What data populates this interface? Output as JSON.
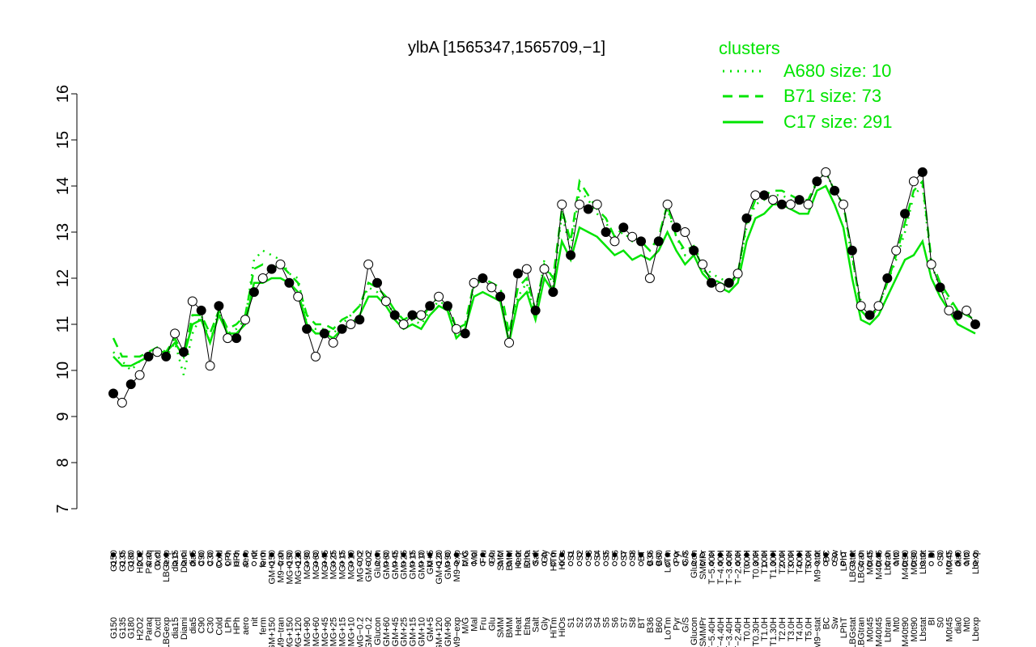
{
  "chart_data": {
    "type": "line",
    "title": "ylbA [1565347,1565709,−1]",
    "xlabel": "",
    "ylabel": "",
    "ylim": [
      7,
      16
    ],
    "yticks": [
      7,
      8,
      9,
      10,
      11,
      12,
      13,
      14,
      15,
      16
    ],
    "grid": false,
    "legend": {
      "title": "clusters",
      "placement": "top-right",
      "entries": [
        {
          "label": "A680 size: 10",
          "style": "dotted"
        },
        {
          "label": "B71 size: 73",
          "style": "dashed"
        },
        {
          "label": "C17 size: 291",
          "style": "solid"
        }
      ]
    },
    "colors": {
      "clusters": "#00e400",
      "points": "#000000"
    },
    "categories": [
      "G150",
      "G135",
      "G180",
      "H2O2",
      "Paraq",
      "Oxctl",
      "LBGexp",
      "dia15",
      "Diami",
      "dia5",
      "C90",
      "C30",
      "Cold",
      "LPh",
      "HPh",
      "aero",
      "nit",
      "ferm",
      "GM+150",
      "M9-tran",
      "MG+150",
      "MG+120",
      "MG+90",
      "MG+60",
      "MG+45",
      "MG+25",
      "MG+15",
      "MG+10",
      "MG-0.2",
      "GM-0.2",
      "Glucon",
      "GM+60",
      "GM+45",
      "GM+25",
      "GM+15",
      "GM+10",
      "GM+5",
      "GM+120",
      "GM+90",
      "M9-exp",
      "M/G",
      "Mal",
      "Fru",
      "Glu",
      "SMM",
      "BMM",
      "Heat",
      "Etha",
      "Salt",
      "Gly",
      "HiTm",
      "HiOs",
      "S1",
      "S2",
      "S3",
      "S4",
      "S5",
      "S6",
      "S7",
      "S8",
      "BT",
      "B36",
      "B60",
      "LoTm",
      "Pyr",
      "G/S",
      "Glucon2",
      "SMMPr",
      "T-5.40H",
      "T-4.40H",
      "T-3.40H",
      "T-2.40H",
      "T0.0H",
      "T0.30H",
      "T1.0H",
      "T1.30H",
      "T2.0H",
      "T3.0H",
      "T4.0H",
      "T5.0H",
      "M9-stat",
      "BC",
      "Sw",
      "LPhT",
      "LBGstat",
      "LBGtran",
      "M0t45",
      "M40t45",
      "Lbtran",
      "Mt0",
      "M40t90",
      "M0t90",
      "Lbstat",
      "BI",
      "S0",
      "M0t45b",
      "dia0",
      "Mt0b",
      "Lbexp"
    ],
    "x_labels_visible": [
      "G150",
      "G135",
      "G180",
      "H2O2",
      "Paraq",
      "Oxctl",
      "LBGexp",
      "dia15",
      "Diami",
      "dia5",
      "C90",
      "C30",
      "Cold",
      "LPh",
      "HPh",
      "aero",
      "nit",
      "ferm",
      "GM+150",
      "M9−tran",
      "MG+150",
      "MG+120",
      "MG+90",
      "MG+60",
      "MG+45",
      "MG+25",
      "MG+15",
      "MG+10",
      "MG−0.2",
      "GM−0.2",
      "Glucon",
      "GM+60",
      "GM+45",
      "GM+25",
      "GM+15",
      "GM+10",
      "GM+5",
      "GM+120",
      "GM+90",
      "M9−exp",
      "M/G",
      "Mal",
      "Fru",
      "Glu",
      "SMM",
      "BMM",
      "Heat",
      "Etha",
      "Salt",
      "Gly",
      "HiTm",
      "HiOs",
      "S1",
      "S2",
      "S3",
      "S4",
      "S5",
      "S6",
      "S7",
      "S8",
      "BT",
      "B36",
      "B60",
      "LoTm",
      "Pyr",
      "G/S",
      "Glucon",
      "SMMPr",
      "T−5.40H",
      "T−4.40H",
      "T−3.40H",
      "T−2.40H",
      "T0.0H",
      "T0.30H",
      "T1.0H",
      "T1.30H",
      "T2.0H",
      "T3.0H",
      "T4.0H",
      "T5.0H",
      "M9−stat",
      "BC",
      "Sw",
      "LPhT",
      "LBGstat",
      "LBGtran",
      "M0t45",
      "M40t45",
      "Lbtran",
      "Mt0",
      "M40t90",
      "M0t90",
      "Lbstat",
      "BI",
      "S0",
      "M0t45",
      "dia0",
      "Mt0",
      "Lbexp"
    ],
    "series": [
      {
        "name": "A680 size: 10",
        "style": "dotted",
        "values": [
          10.4,
          10.2,
          10.0,
          10.2,
          10.3,
          10.4,
          10.3,
          10.6,
          9.9,
          10.8,
          11.2,
          10.6,
          11.3,
          10.8,
          10.9,
          11.1,
          12.4,
          12.6,
          12.5,
          12.4,
          12.1,
          12.0,
          11.0,
          10.9,
          10.9,
          10.8,
          11.0,
          11.2,
          11.4,
          11.8,
          11.7,
          11.5,
          11.2,
          11.0,
          11.1,
          11.0,
          11.3,
          11.5,
          11.4,
          10.7,
          10.9,
          11.8,
          12.0,
          11.8,
          11.7,
          10.6,
          11.6,
          11.9,
          11.1,
          12.4,
          11.8,
          13.4,
          12.6,
          13.9,
          13.7,
          13.4,
          13.2,
          12.9,
          13.0,
          12.8,
          12.8,
          12.6,
          12.9,
          13.5,
          12.9,
          12.5,
          12.7,
          12.3,
          12.1,
          12.0,
          11.9,
          12.1,
          13.1,
          13.6,
          13.7,
          13.8,
          13.8,
          13.7,
          13.6,
          13.6,
          14.1,
          14.3,
          13.9,
          13.6,
          12.4,
          11.5,
          11.2,
          11.4,
          11.9,
          12.4,
          13.0,
          13.8,
          14.0,
          12.3,
          11.8,
          11.5,
          11.3,
          11.2,
          11.1
        ]
      },
      {
        "name": "B71 size: 73",
        "style": "dashed",
        "values": [
          10.7,
          10.3,
          10.3,
          10.3,
          10.4,
          10.5,
          10.4,
          10.7,
          10.3,
          11.2,
          11.2,
          10.8,
          11.3,
          10.9,
          11.0,
          11.2,
          12.2,
          12.3,
          12.2,
          12.3,
          12.1,
          11.9,
          11.2,
          11.0,
          11.0,
          10.9,
          11.1,
          11.2,
          11.4,
          11.9,
          11.8,
          11.6,
          11.3,
          11.1,
          11.2,
          11.1,
          11.4,
          11.6,
          11.5,
          10.9,
          11.0,
          11.9,
          12.0,
          11.9,
          11.8,
          10.8,
          11.8,
          12.0,
          11.3,
          12.3,
          12.0,
          13.5,
          12.8,
          14.1,
          13.8,
          13.5,
          13.3,
          12.9,
          13.1,
          12.9,
          12.8,
          12.6,
          12.9,
          13.6,
          12.9,
          12.6,
          12.7,
          12.2,
          12.0,
          11.9,
          11.8,
          12.1,
          13.2,
          13.7,
          13.8,
          13.9,
          13.9,
          13.8,
          13.7,
          13.7,
          14.1,
          14.3,
          13.9,
          13.6,
          12.5,
          11.3,
          11.1,
          11.4,
          11.9,
          12.5,
          13.2,
          13.9,
          14.1,
          12.4,
          11.9,
          11.6,
          11.3,
          11.2,
          11.1
        ]
      },
      {
        "name": "C17 size: 291",
        "style": "solid",
        "values": [
          10.3,
          10.1,
          10.1,
          10.2,
          10.3,
          10.4,
          10.4,
          10.6,
          10.3,
          11.0,
          11.1,
          10.6,
          11.2,
          10.8,
          10.8,
          11.0,
          11.9,
          11.9,
          12.0,
          12.0,
          11.9,
          11.7,
          11.0,
          10.8,
          10.8,
          10.7,
          10.9,
          11.0,
          11.2,
          11.6,
          11.6,
          11.4,
          11.1,
          10.9,
          11.0,
          10.9,
          11.2,
          11.4,
          11.3,
          10.7,
          10.9,
          11.6,
          11.7,
          11.6,
          11.5,
          10.6,
          11.5,
          11.7,
          11.1,
          12.0,
          11.7,
          12.8,
          12.4,
          13.1,
          13.0,
          12.9,
          12.7,
          12.5,
          12.6,
          12.4,
          12.5,
          12.4,
          12.6,
          13.0,
          12.6,
          12.3,
          12.5,
          12.1,
          11.9,
          11.8,
          11.7,
          11.9,
          12.8,
          13.3,
          13.4,
          13.6,
          13.6,
          13.5,
          13.4,
          13.4,
          13.9,
          14.0,
          13.6,
          13.1,
          12.0,
          11.1,
          11.0,
          11.2,
          11.6,
          12.0,
          12.4,
          12.5,
          12.8,
          12.0,
          11.6,
          11.3,
          11.0,
          10.9,
          10.8
        ]
      }
    ],
    "points": [
      9.5,
      9.3,
      9.7,
      9.9,
      10.3,
      10.4,
      10.3,
      10.8,
      10.4,
      11.5,
      11.3,
      10.1,
      11.4,
      10.7,
      10.7,
      11.1,
      11.7,
      12.0,
      12.2,
      12.3,
      11.9,
      11.6,
      10.9,
      10.3,
      10.8,
      10.6,
      10.9,
      11.0,
      11.1,
      12.3,
      11.9,
      11.5,
      11.2,
      11.0,
      11.2,
      11.2,
      11.4,
      11.6,
      11.4,
      10.9,
      10.8,
      11.9,
      12.0,
      11.8,
      11.6,
      10.6,
      12.1,
      12.2,
      11.3,
      12.2,
      11.7,
      13.6,
      12.5,
      13.6,
      13.5,
      13.6,
      13.0,
      12.8,
      13.1,
      12.9,
      12.8,
      12.0,
      12.8,
      13.6,
      13.1,
      13.0,
      12.6,
      12.3,
      11.9,
      11.8,
      11.9,
      12.1,
      13.3,
      13.8,
      13.8,
      13.7,
      13.6,
      13.6,
      13.7,
      13.6,
      14.1,
      14.3,
      13.9,
      13.6,
      12.6,
      11.4,
      11.2,
      11.4,
      12.0,
      12.6,
      13.4,
      14.1,
      14.3,
      12.3,
      11.8,
      11.3,
      11.2,
      11.3,
      11.0
    ]
  }
}
